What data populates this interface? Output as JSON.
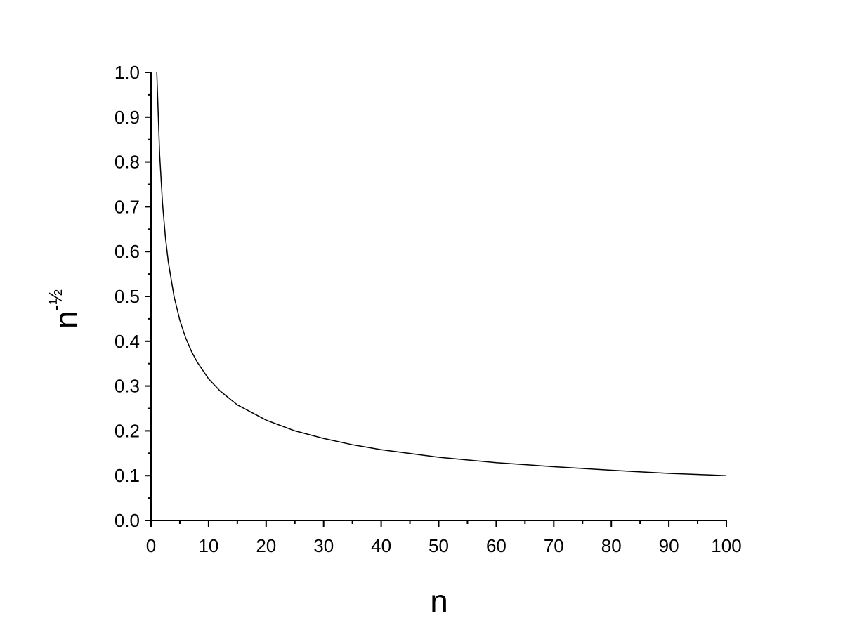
{
  "chart_data": {
    "type": "line",
    "x_label": "n",
    "y_label": "n",
    "y_label_superscript": "-½",
    "x": [
      1,
      1.5,
      2,
      2.5,
      3,
      4,
      5,
      6,
      7,
      8,
      10,
      12,
      15,
      20,
      25,
      30,
      35,
      40,
      50,
      60,
      70,
      80,
      90,
      100
    ],
    "series": [
      {
        "color": "#000000",
        "values": [
          1,
          0.816,
          0.707,
          0.632,
          0.577,
          0.5,
          0.447,
          0.408,
          0.378,
          0.354,
          0.316,
          0.289,
          0.258,
          0.224,
          0.2,
          0.183,
          0.169,
          0.158,
          0.141,
          0.129,
          0.12,
          0.112,
          0.105,
          0.1
        ]
      }
    ],
    "xlim": [
      0,
      100
    ],
    "ylim": [
      0,
      1
    ],
    "xticks": [
      0,
      10,
      20,
      30,
      40,
      50,
      60,
      70,
      80,
      90,
      100
    ],
    "xminorticks": [
      5,
      15,
      25,
      35,
      45,
      55,
      65,
      75,
      85,
      95
    ],
    "yticks": [
      {
        "value": 0,
        "label": "0.0"
      },
      0.1,
      0.2,
      0.3,
      0.4,
      0.5,
      0.6,
      0.7,
      0.8,
      0.9,
      {
        "value": 1,
        "label": "1.0"
      }
    ],
    "yminorticks": [
      0.05,
      0.15,
      0.25,
      0.35,
      0.45,
      0.55,
      0.65,
      0.75,
      0.85,
      0.95
    ],
    "grid": false
  }
}
